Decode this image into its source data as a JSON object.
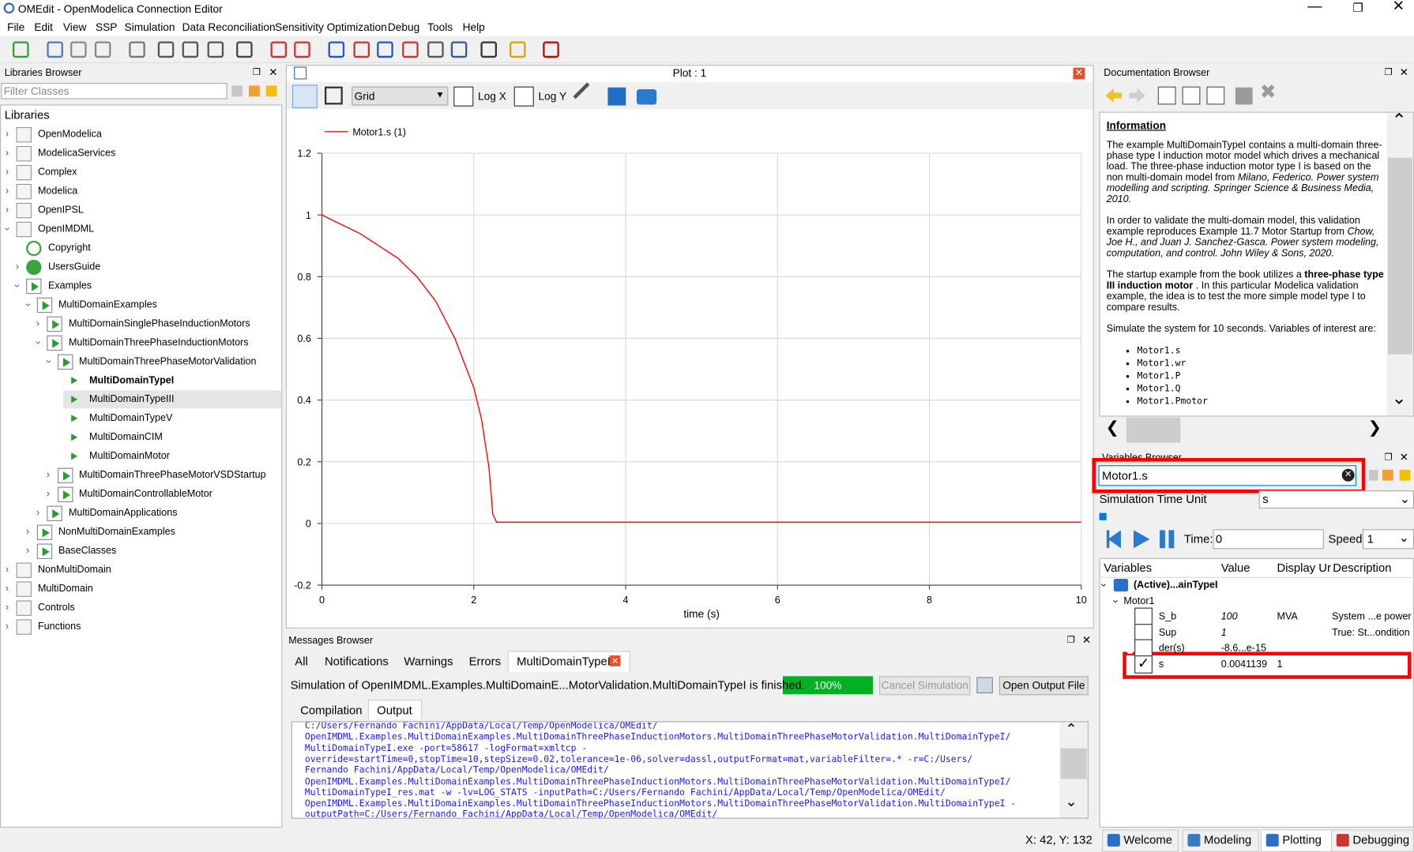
{
  "window": {
    "title": "OMEdit - OpenModelica Connection Editor"
  },
  "menu": [
    "File",
    "Edit",
    "View",
    "SSP",
    "Simulation",
    "Data Reconciliation",
    "Sensitivity Optimization",
    "Debug",
    "Tools",
    "Help"
  ],
  "libraries_browser": {
    "title": "Libraries Browser",
    "filter_placeholder": "Filter Classes",
    "root": "Libraries",
    "items": [
      {
        "label": "OpenModelica",
        "level": 0,
        "expanded": false
      },
      {
        "label": "ModelicaServices",
        "level": 0,
        "expanded": false
      },
      {
        "label": "Complex",
        "level": 0,
        "expanded": false
      },
      {
        "label": "Modelica",
        "level": 0,
        "expanded": false
      },
      {
        "label": "OpenIPSL",
        "level": 0,
        "expanded": false
      },
      {
        "label": "OpenIMDML",
        "level": 0,
        "expanded": true
      },
      {
        "label": "Copyright",
        "level": 1
      },
      {
        "label": "UsersGuide",
        "level": 1,
        "expanded": false
      },
      {
        "label": "Examples",
        "level": 1,
        "expanded": true
      },
      {
        "label": "MultiDomainExamples",
        "level": 2,
        "expanded": true
      },
      {
        "label": "MultiDomainSinglePhaseInductionMotors",
        "level": 3,
        "expanded": false
      },
      {
        "label": "MultiDomainThreePhaseInductionMotors",
        "level": 3,
        "expanded": true
      },
      {
        "label": "MultiDomainThreePhaseMotorValidation",
        "level": 4,
        "expanded": true
      },
      {
        "label": "MultiDomainTypeI",
        "level": 5,
        "bold": true
      },
      {
        "label": "MultiDomainTypeIII",
        "level": 5,
        "selected": true
      },
      {
        "label": "MultiDomainTypeV",
        "level": 5
      },
      {
        "label": "MultiDomainCIM",
        "level": 5
      },
      {
        "label": "MultiDomainMotor",
        "level": 5
      },
      {
        "label": "MultiDomainThreePhaseMotorVSDStartup",
        "level": 4,
        "expanded": false
      },
      {
        "label": "MultiDomainControllableMotor",
        "level": 4,
        "expanded": false
      },
      {
        "label": "MultiDomainApplications",
        "level": 3,
        "expanded": false
      },
      {
        "label": "NonMultiDomainExamples",
        "level": 2,
        "expanded": false
      },
      {
        "label": "BaseClasses",
        "level": 2,
        "expanded": false
      },
      {
        "label": "NonMultiDomain",
        "level": 0,
        "expanded": false
      },
      {
        "label": "MultiDomain",
        "level": 0,
        "expanded": false
      },
      {
        "label": "Controls",
        "level": 0,
        "expanded": false
      },
      {
        "label": "Functions",
        "level": 0,
        "expanded": false
      }
    ]
  },
  "plot_window": {
    "title": "Plot : 1",
    "grid_mode": "Grid",
    "log_x": "Log X",
    "log_y": "Log Y"
  },
  "chart_data": {
    "type": "line",
    "x_label": "time (s)",
    "x": [
      0,
      0.25,
      0.5,
      0.75,
      1,
      1.25,
      1.5,
      1.75,
      2,
      2.1,
      2.2,
      2.25,
      2.3,
      4,
      6,
      8,
      10
    ],
    "series": [
      {
        "name": "Motor1.s (1)",
        "color": "#ff0000",
        "values": [
          1,
          0.97,
          0.94,
          0.9,
          0.86,
          0.8,
          0.72,
          0.6,
          0.44,
          0.34,
          0.18,
          0.03,
          0.004,
          0.004,
          0.004,
          0.004,
          0.004
        ]
      }
    ],
    "xlim": [
      0,
      10
    ],
    "ylim": [
      -0.2,
      1.2
    ],
    "xticks": [
      0,
      2,
      4,
      6,
      8,
      10
    ],
    "yticks": [
      -0.2,
      0,
      0.2,
      0.4,
      0.6,
      0.8,
      1,
      1.2
    ],
    "grid": true
  },
  "documentation_browser": {
    "title": "Documentation Browser",
    "heading": "Information",
    "paragraphs": [
      [
        {
          "text": "The example MultiDomainTypeI contains a multi-domain three-phase type I induction motor model which drives a mechanical load. The three-phase induction motor type I is based on the non multi-domain model from "
        },
        {
          "text": "Milano, Federico. Power system modelling and scripting. Springer Science & Business Media, 2010.",
          "style": "italic"
        }
      ],
      [
        {
          "text": "In order to validate the multi-domain model, this validation example reproduces Example 11.7 Motor Startup from "
        },
        {
          "text": "Chow, Joe H., and Juan J. Sanchez-Gasca. Power system modeling, computation, and control. John Wiley & Sons, 2020.",
          "style": "italic"
        }
      ],
      [
        {
          "text": "The startup example from the book utilizes a "
        },
        {
          "text": "three-phase type III induction motor",
          "style": "bold"
        },
        {
          "text": " . In this particular Modelica validation example, the idea is to test the more simple model type I to compare results."
        }
      ],
      [
        {
          "text": "Simulate the system for 10 seconds. Variables of interest are:"
        }
      ]
    ],
    "variables": [
      "Motor1.s",
      "Motor1.wr",
      "Motor1.P",
      "Motor1.Q",
      "Motor1.Pmotor"
    ]
  },
  "variables_browser": {
    "title": "Variables Browser",
    "search": "Motor1.s",
    "time_unit_label": "Simulation Time Unit",
    "time_unit": "s",
    "time_label": "Time:",
    "time": "0",
    "speed_label": "Speed:",
    "speed": "1",
    "columns": [
      "Variables",
      "Value",
      "Display Ur",
      "Description"
    ],
    "result": "(Active)...ainTypeI",
    "component": "Motor1",
    "rows": [
      {
        "name": "S_b",
        "value": "100",
        "unit": "MVA",
        "description": "System ...e power",
        "checked": false
      },
      {
        "name": "Sup",
        "value": "1",
        "unit": "",
        "description": "True: St...ondition",
        "checked": false
      },
      {
        "name": "der(s)",
        "value": "-8.6...e-15",
        "unit": "",
        "description": "",
        "checked": false
      },
      {
        "name": "s",
        "value": "0.0041139",
        "unit": "1",
        "description": "",
        "checked": true
      }
    ]
  },
  "messages_browser": {
    "title": "Messages Browser",
    "tabs": [
      "All",
      "Notifications",
      "Warnings",
      "Errors",
      "MultiDomainTypeI"
    ],
    "message": "Simulation of OpenIMDML.Examples.MultiDomainE...MotorValidation.MultiDomainTypeI is finished.",
    "progress": "100%",
    "cancel": "Cancel Simulation",
    "open_output": "Open Output File",
    "subtabs": [
      "Compilation",
      "Output"
    ],
    "output": [
      "C:/Users/Fernando Fachini/AppData/Local/Temp/OpenModelica/OMEdit/",
      "OpenIMDML.Examples.MultiDomainExamples.MultiDomainThreePhaseInductionMotors.MultiDomainThreePhaseMotorValidation.MultiDomainTypeI/",
      "MultiDomainTypeI.exe -port=58617 -logFormat=xmltcp -",
      "override=startTime=0,stopTime=10,stepSize=0.02,tolerance=1e-06,solver=dassl,outputFormat=mat,variableFilter=.* -r=C:/Users/",
      "Fernando Fachini/AppData/Local/Temp/OpenModelica/OMEdit/",
      "OpenIMDML.Examples.MultiDomainExamples.MultiDomainThreePhaseInductionMotors.MultiDomainThreePhaseMotorValidation.MultiDomainTypeI/",
      "MultiDomainTypeI_res.mat -w -lv=LOG_STATS -inputPath=C:/Users/Fernando Fachini/AppData/Local/Temp/OpenModelica/OMEdit/",
      "OpenIMDML.Examples.MultiDomainExamples.MultiDomainThreePhaseInductionMotors.MultiDomainThreePhaseMotorValidation.MultiDomainTypeI -",
      "outputPath=C:/Users/Fernando Fachini/AppData/Local/Temp/OpenModelica/OMEdit/"
    ]
  },
  "status_bar": {
    "coordinates": "X: 42, Y: 132"
  },
  "perspectives": [
    "Welcome",
    "Modeling",
    "Plotting",
    "Debugging"
  ]
}
